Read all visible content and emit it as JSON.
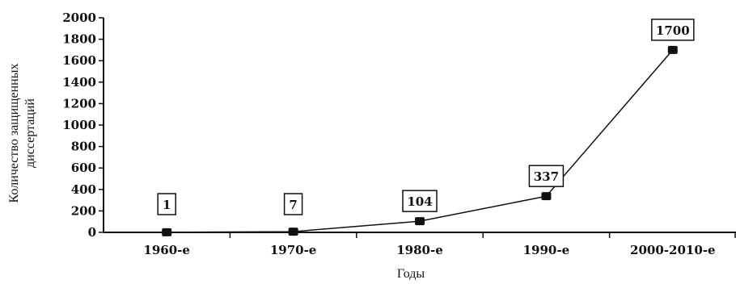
{
  "chart_data": {
    "type": "line",
    "title": "",
    "xlabel": "Годы",
    "ylabel_lines": [
      "Количество защищенных",
      "диссертаций"
    ],
    "categories": [
      "1960-е",
      "1970-е",
      "1980-е",
      "1990-е",
      "2000-2010-е"
    ],
    "series": [
      {
        "values": [
          1,
          7,
          104,
          337,
          1700
        ]
      }
    ],
    "data_labels": [
      "1",
      "7",
      "104",
      "337",
      "1700"
    ],
    "ylim": [
      0,
      2000
    ],
    "yticks": [
      "2000",
      "1800",
      "1600",
      "1400",
      "1200",
      "1000",
      "800",
      "600",
      "400",
      "200",
      "0"
    ],
    "grid": false,
    "legend": "none",
    "colors": {
      "line": "#111111",
      "marker": "#111111",
      "axis": "#111111"
    }
  }
}
